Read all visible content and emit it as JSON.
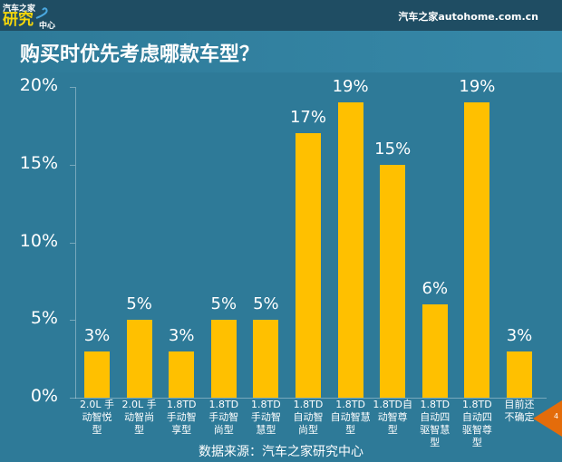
{
  "header": {
    "logo_top": "汽车之家",
    "logo_main": "研究",
    "logo_sub": "中心",
    "site": "汽车之家autohome.com.cn"
  },
  "title": "购买时优先考虑哪款车型？",
  "source": "数据来源：汽车之家研究中心",
  "page_number": "4",
  "colors": {
    "background": "#2e7a98",
    "topbar": "#1f4d63",
    "bar": "#ffc000",
    "page_tab": "#e46c0a"
  },
  "chart_data": {
    "type": "bar",
    "title": "购买时优先考虑哪款车型？",
    "xlabel": "",
    "ylabel": "",
    "ylim": [
      0,
      20
    ],
    "yticks": [
      "0%",
      "5%",
      "10%",
      "15%",
      "20%"
    ],
    "grid": false,
    "legend": null,
    "categories": [
      "2.0L 手动智悦型",
      "2.0L 手动智尚型",
      "1.8TD 手动智享型",
      "1.8TD 手动智尚型",
      "1.8TD 手动智慧型",
      "1.8TD 自动智尚型",
      "1.8TD 自动智慧型",
      "1.8TD自动智尊型",
      "1.8TD 自动四驱智慧型",
      "1.8TD 自动四驱智尊型",
      "目前还不确定"
    ],
    "category_display": [
      "2.0L 手\n动智悦\n型",
      "2.0L 手\n动智尚\n型",
      "1.8TD\n手动智\n享型",
      "1.8TD\n手动智\n尚型",
      "1.8TD\n手动智\n慧型",
      "1.8TD\n自动智\n尚型",
      "1.8TD\n自动智慧\n型",
      "1.8TD自\n动智尊\n型",
      "1.8TD\n自动四\n驱智慧\n型",
      "1.8TD\n自动四\n驱智尊\n型",
      "目前还\n不确定"
    ],
    "values": [
      3,
      5,
      3,
      5,
      5,
      17,
      19,
      15,
      6,
      19,
      3
    ],
    "value_labels": [
      "3%",
      "5%",
      "3%",
      "5%",
      "5%",
      "17%",
      "19%",
      "15%",
      "6%",
      "19%",
      "3%"
    ]
  }
}
